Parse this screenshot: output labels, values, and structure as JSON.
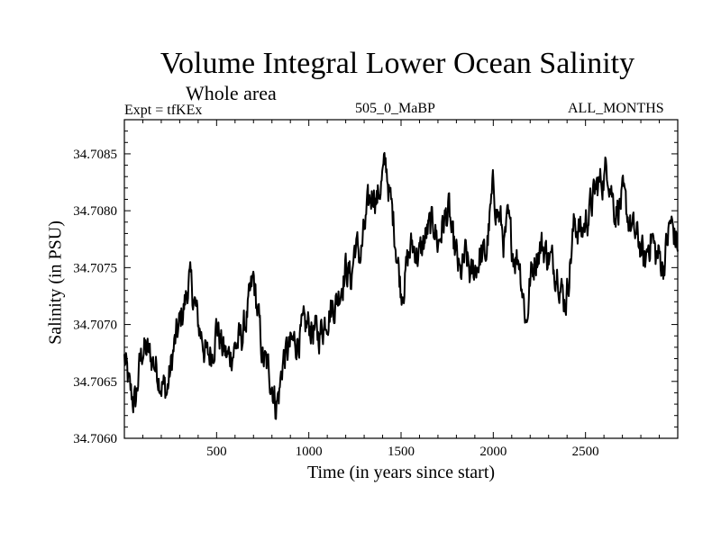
{
  "chart_data": {
    "type": "line",
    "title": "Volume Integral Lower Ocean Salinity",
    "subtitle": "Whole area",
    "experiment_label": "Expt = tfKEx",
    "center_label": "505_0_MaBP",
    "period_label": "ALL_MONTHS",
    "xlabel": "Time (in years since start)",
    "ylabel": "Salinity (in PSU)",
    "xlim": [
      0,
      3000
    ],
    "ylim": [
      34.706,
      34.7088
    ],
    "x_ticks": [
      500,
      1000,
      1500,
      2000,
      2500
    ],
    "x_tick_labels": [
      "500",
      "1000",
      "1500",
      "2000",
      "2500"
    ],
    "y_ticks": [
      34.706,
      34.7065,
      34.707,
      34.7075,
      34.708,
      34.7085
    ],
    "y_tick_labels": [
      "34.7060",
      "34.7065",
      "34.7070",
      "34.7075",
      "34.7080",
      "34.7085"
    ],
    "grid": false,
    "line_color": "#000000",
    "series": [
      {
        "x": [
          0,
          30,
          60,
          80,
          100,
          150,
          180,
          200,
          230,
          270,
          300,
          330,
          350,
          380,
          400,
          420,
          450,
          480,
          500,
          530,
          560,
          600,
          640,
          680,
          700,
          730,
          750,
          780,
          800,
          820,
          840,
          860,
          900,
          950,
          1000,
          1050,
          1080,
          1100,
          1150,
          1200,
          1230,
          1250,
          1280,
          1300,
          1320,
          1350,
          1370,
          1400,
          1420,
          1440,
          1460,
          1480,
          1500,
          1520,
          1540,
          1560,
          1600,
          1640,
          1680,
          1700,
          1730,
          1760,
          1780,
          1800,
          1820,
          1850,
          1880,
          1900,
          1930,
          1960,
          2000,
          2020,
          2040,
          2060,
          2080,
          2100,
          2120,
          2140,
          2160,
          2180,
          2200,
          2230,
          2260,
          2300,
          2330,
          2350,
          2370,
          2390,
          2400,
          2420,
          2440,
          2480,
          2520,
          2560,
          2600,
          2620,
          2640,
          2660,
          2700,
          2740,
          2760,
          2800,
          2820,
          2840,
          2860,
          2880,
          2900,
          2920,
          2940,
          2960,
          2980,
          3000
        ],
        "y": [
          34.7067,
          34.7064,
          34.7063,
          34.7066,
          34.7068,
          34.7067,
          34.7066,
          34.7065,
          34.7064,
          34.7068,
          34.707,
          34.7072,
          34.7074,
          34.7072,
          34.707,
          34.7069,
          34.7067,
          34.7068,
          34.707,
          34.7068,
          34.7067,
          34.7068,
          34.7069,
          34.7072,
          34.7074,
          34.707,
          34.7067,
          34.7066,
          34.7065,
          34.7063,
          34.7064,
          34.7067,
          34.7068,
          34.7069,
          34.707,
          34.7069,
          34.707,
          34.7071,
          34.7072,
          34.7075,
          34.7074,
          34.7077,
          34.7076,
          34.7078,
          34.708,
          34.7082,
          34.7081,
          34.7083,
          34.7084,
          34.7081,
          34.7079,
          34.7076,
          34.7073,
          34.7074,
          34.7076,
          34.7077,
          34.7076,
          34.7078,
          34.7079,
          34.7077,
          34.7079,
          34.708,
          34.7077,
          34.7076,
          34.7074,
          34.7076,
          34.7074,
          34.7075,
          34.7076,
          34.7076,
          34.7082,
          34.708,
          34.7079,
          34.7077,
          34.7079,
          34.7077,
          34.7076,
          34.7076,
          34.7073,
          34.707,
          34.7074,
          34.7076,
          34.7077,
          34.7076,
          34.7075,
          34.7075,
          34.7073,
          34.7072,
          34.7073,
          34.7076,
          34.7079,
          34.7078,
          34.708,
          34.7082,
          34.7083,
          34.7084,
          34.7082,
          34.708,
          34.7081,
          34.7079,
          34.7078,
          34.7077,
          34.7075,
          34.7077,
          34.7078,
          34.7076,
          34.7076,
          34.7075,
          34.7077,
          34.7079,
          34.7078,
          34.7077
        ]
      }
    ]
  }
}
